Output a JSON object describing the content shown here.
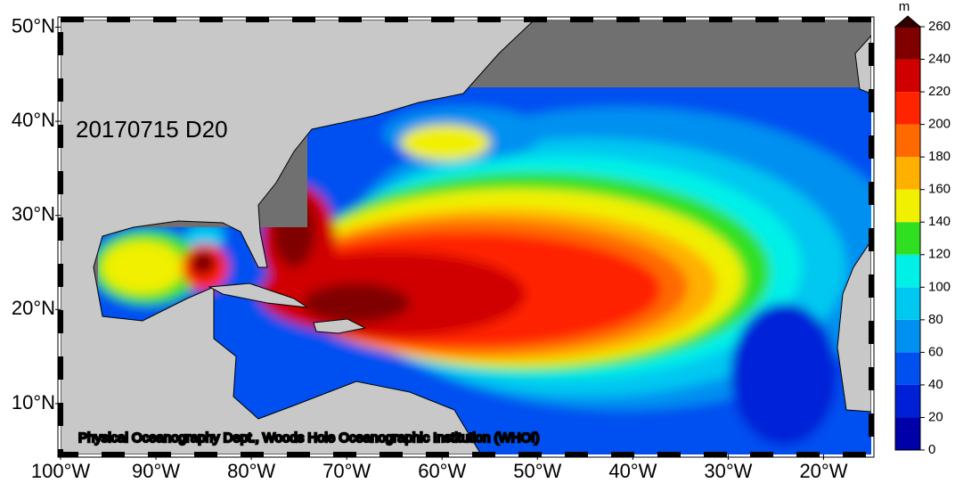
{
  "map": {
    "label": "20170715 D20",
    "credit": "Physical Oceanography Dept., Woods Hole Oceanographic Institution (WHOI)",
    "xlim": [
      -100,
      -15
    ],
    "ylim": [
      4.6,
      50.8
    ],
    "xticks": [
      {
        "value": -100,
        "label": "100°W"
      },
      {
        "value": -90,
        "label": "90°W"
      },
      {
        "value": -80,
        "label": "80°W"
      },
      {
        "value": -70,
        "label": "70°W"
      },
      {
        "value": -60,
        "label": "60°W"
      },
      {
        "value": -50,
        "label": "50°W"
      },
      {
        "value": -40,
        "label": "40°W"
      },
      {
        "value": -30,
        "label": "30°W"
      },
      {
        "value": -20,
        "label": "20°W"
      }
    ],
    "yticks": [
      {
        "value": 10,
        "label": "10°N"
      },
      {
        "value": 20,
        "label": "20°N"
      },
      {
        "value": 30,
        "label": "30°N"
      },
      {
        "value": 40,
        "label": "40°N"
      },
      {
        "value": 50,
        "label": "50°N"
      }
    ]
  },
  "colorbar": {
    "unit": "m",
    "ticks": [
      0,
      20,
      40,
      60,
      80,
      100,
      120,
      140,
      160,
      180,
      200,
      220,
      240,
      260
    ],
    "colors": [
      "#0000a8",
      "#0020d8",
      "#0050f0",
      "#0090f0",
      "#00c8f0",
      "#00f0e8",
      "#30e020",
      "#f0f000",
      "#ffb000",
      "#ff6a00",
      "#ff2400",
      "#d00000",
      "#800000"
    ],
    "extend_color": "#300000"
  }
}
